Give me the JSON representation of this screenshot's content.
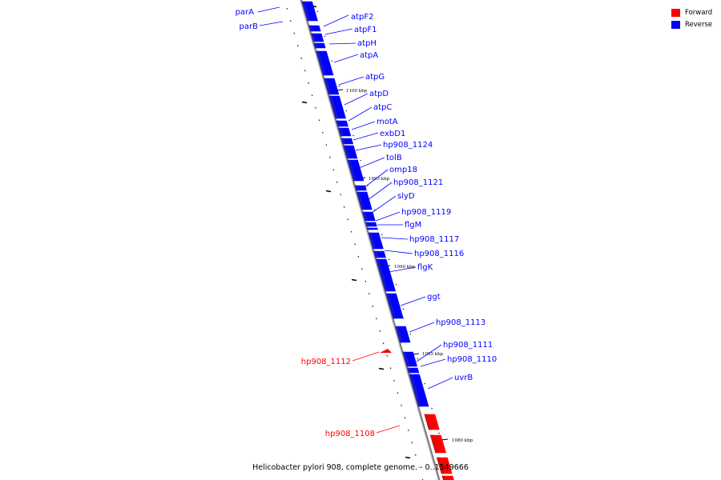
{
  "caption": "Helicobacter pylori 908, complete genome. - 0..1549666",
  "legend": [
    {
      "label": "Forward",
      "color": "#ff0000"
    },
    {
      "label": "Reverse",
      "color": "#0000ff"
    }
  ],
  "colors": {
    "forward": "#ff0000",
    "reverse": "#0000ff",
    "backbone": "#808080"
  },
  "scale_labels": [
    "1100 kbp",
    "1095 kbp",
    "1090 kbp",
    "1085 kbp",
    "1080 kbp"
  ],
  "genes": [
    {
      "name": "parA",
      "strand": "reverse"
    },
    {
      "name": "parB",
      "strand": "reverse"
    },
    {
      "name": "atpF2",
      "strand": "reverse"
    },
    {
      "name": "atpF1",
      "strand": "reverse"
    },
    {
      "name": "atpH",
      "strand": "reverse"
    },
    {
      "name": "atpA",
      "strand": "reverse"
    },
    {
      "name": "atpG",
      "strand": "reverse"
    },
    {
      "name": "atpD",
      "strand": "reverse"
    },
    {
      "name": "atpC",
      "strand": "reverse"
    },
    {
      "name": "motA",
      "strand": "reverse"
    },
    {
      "name": "exbD1",
      "strand": "reverse"
    },
    {
      "name": "hp908_1124",
      "strand": "reverse"
    },
    {
      "name": "tolB",
      "strand": "reverse"
    },
    {
      "name": "omp18",
      "strand": "reverse"
    },
    {
      "name": "hp908_1121",
      "strand": "reverse"
    },
    {
      "name": "slyD",
      "strand": "reverse"
    },
    {
      "name": "hp908_1119",
      "strand": "reverse"
    },
    {
      "name": "flgM",
      "strand": "reverse"
    },
    {
      "name": "hp908_1117",
      "strand": "reverse"
    },
    {
      "name": "hp908_1116",
      "strand": "reverse"
    },
    {
      "name": "flgK",
      "strand": "reverse"
    },
    {
      "name": "ggt",
      "strand": "reverse"
    },
    {
      "name": "hp908_1113",
      "strand": "reverse"
    },
    {
      "name": "hp908_1111",
      "strand": "reverse"
    },
    {
      "name": "hp908_1110",
      "strand": "reverse"
    },
    {
      "name": "uvrB",
      "strand": "reverse"
    },
    {
      "name": "hp908_1112",
      "strand": "forward"
    },
    {
      "name": "hp908_1108",
      "strand": "forward"
    }
  ]
}
